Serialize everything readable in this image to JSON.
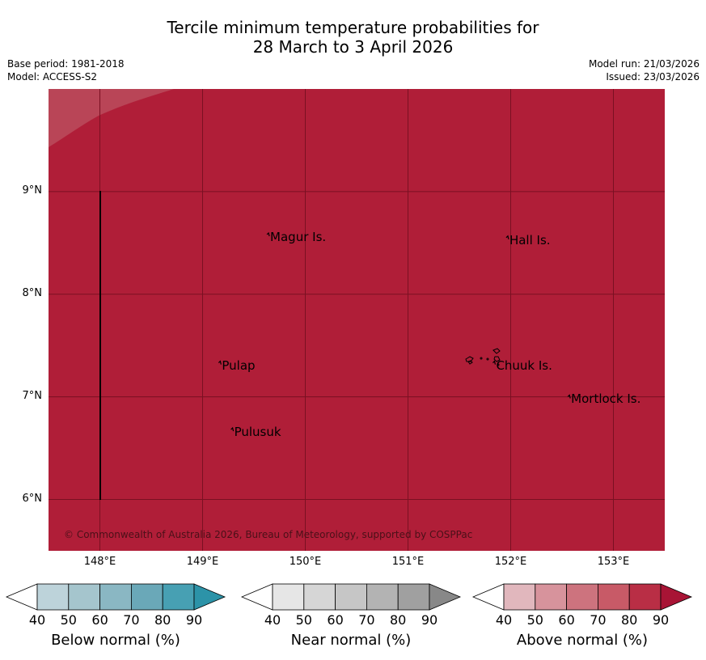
{
  "title": {
    "line1": "Tercile minimum temperature probabilities for",
    "line2": "28 March to 3 April 2026"
  },
  "meta": {
    "base_period": "Base period: 1981-2018",
    "model": "Model: ACCESS-S2",
    "model_run": "Model run: 21/03/2026",
    "issued": "Issued: 23/03/2026"
  },
  "map": {
    "fill_color": "#b01e38",
    "lat_range": [
      5.5,
      10.0
    ],
    "lon_range": [
      147.5,
      153.5
    ],
    "lat_labels": [
      "9°N",
      "8°N",
      "7°N",
      "6°N"
    ],
    "lon_labels": [
      "148°E",
      "149°E",
      "150°E",
      "151°E",
      "152°E",
      "153°E"
    ],
    "places": [
      {
        "name": "Magur Is.",
        "lat": 8.55,
        "lon": 149.65
      },
      {
        "name": "Hall Is.",
        "lat": 8.52,
        "lon": 151.98
      },
      {
        "name": "Pulap",
        "lat": 7.3,
        "lon": 149.18
      },
      {
        "name": "Chuuk Is.",
        "lat": 7.3,
        "lon": 151.85
      },
      {
        "name": "Mortlock Is.",
        "lat": 6.97,
        "lon": 152.58
      },
      {
        "name": "Pulusuk",
        "lat": 6.65,
        "lon": 149.3
      }
    ],
    "copyright": "© Commonwealth of Australia 2026, Bureau of Meteorology, supported by COSPPac"
  },
  "colorbars": [
    {
      "label": "Below normal (%)",
      "ticks": [
        "40",
        "50",
        "60",
        "70",
        "80",
        "90"
      ],
      "colors": [
        "#bdd3da",
        "#a5c5cd",
        "#8ab7c3",
        "#6aa8b8",
        "#47a0b3",
        "#2c93a8"
      ]
    },
    {
      "label": "Near normal (%)",
      "ticks": [
        "40",
        "50",
        "60",
        "70",
        "80",
        "90"
      ],
      "colors": [
        "#e6e6e6",
        "#d6d6d6",
        "#c6c6c6",
        "#b3b3b3",
        "#a0a0a0",
        "#888888"
      ]
    },
    {
      "label": "Above normal (%)",
      "ticks": [
        "40",
        "50",
        "60",
        "70",
        "80",
        "90"
      ],
      "colors": [
        "#e1b7bd",
        "#d7939c",
        "#cd737e",
        "#c85a67",
        "#b92e45",
        "#a81435"
      ]
    }
  ]
}
